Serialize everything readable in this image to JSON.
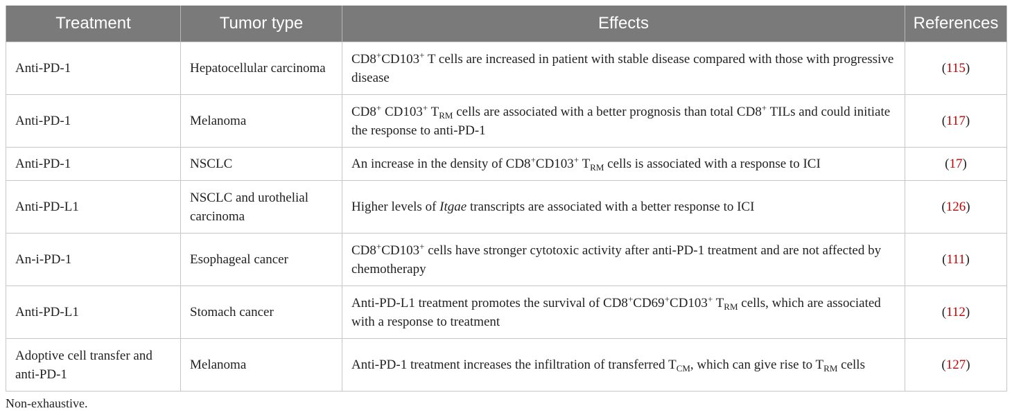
{
  "header": {
    "treatment": "Treatment",
    "tumor_type": "Tumor type",
    "effects": "Effects",
    "references": "References"
  },
  "rows": [
    {
      "treatment": "Anti-PD-1",
      "tumor": "Hepatocellular carcinoma",
      "effects": {
        "t1": "CD8",
        "s1": "+",
        "t2": "CD103",
        "s2": "+",
        "t3": " T cells are increased in patient with stable disease compared with those with progressive disease"
      },
      "ref": "115"
    },
    {
      "treatment": "Anti-PD-1",
      "tumor": "Melanoma",
      "effects": {
        "t1": "CD8",
        "s1": "+",
        "t2": " CD103",
        "s2": "+",
        "t3": " T",
        "sb3": "RM",
        "t4": " cells are associated with a better prognosis than total CD8",
        "s4": "+",
        "t5": " TILs and could initiate the response to anti-PD-1"
      },
      "ref": "117"
    },
    {
      "treatment": "Anti-PD-1",
      "tumor": "NSCLC",
      "effects": {
        "t1": "An increase in the density of CD8",
        "s1": "+",
        "t2": "CD103",
        "s2": "+",
        "t3": " T",
        "sb3": "RM",
        "t4": " cells is associated with a response to ICI"
      },
      "ref": "17"
    },
    {
      "treatment": "Anti-PD-L1",
      "tumor": "NSCLC and urothelial carcinoma",
      "effects": {
        "t1": "Higher levels of ",
        "i1": "Itgae",
        "t2": " transcripts are associated with a better response to ICI"
      },
      "ref": "126"
    },
    {
      "treatment": "An-i-PD-1",
      "tumor": "Esophageal cancer",
      "effects": {
        "t1": "CD8",
        "s1": "+",
        "t2": "CD103",
        "s2": "+",
        "t3": " cells have stronger cytotoxic activity after anti-PD-1 treatment and are not affected by chemotherapy"
      },
      "ref": "111"
    },
    {
      "treatment": "Anti-PD-L1",
      "tumor": "Stomach cancer",
      "effects": {
        "t1": "Anti-PD-L1 treatment promotes the survival of CD8",
        "s1": "+",
        "t2": "CD69",
        "s2": "+",
        "t3": "CD103",
        "s3": "+",
        "t4": " T",
        "sb4": "RM",
        "t5": " cells, which are associated with a response to treatment"
      },
      "ref": "112"
    },
    {
      "treatment": "Adoptive cell transfer and anti-PD-1",
      "tumor": "Melanoma",
      "effects": {
        "t1": "Anti-PD-1 treatment increases the infiltration of transferred T",
        "sb1": "CM",
        "t2": ", which can give rise to T",
        "sb2": "RM",
        "t3": " cells"
      },
      "ref": "127"
    }
  ],
  "ref_open": "(",
  "ref_close": ")",
  "footnote": "Non-exhaustive.",
  "colors": {
    "header_bg": "#7a7a7a",
    "reference_link": "#c00000",
    "border": "#c6c6c6"
  }
}
